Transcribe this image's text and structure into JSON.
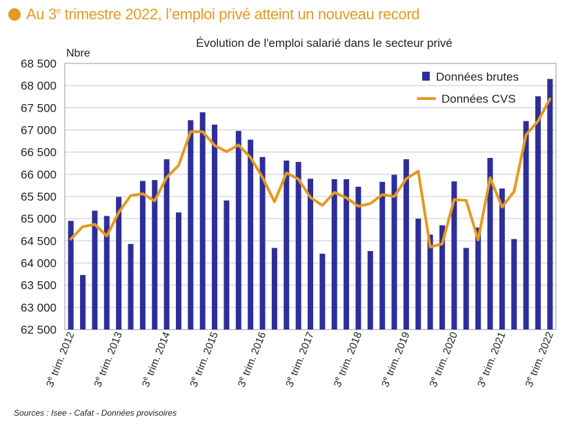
{
  "headline": {
    "pre": "Au 3",
    "sup": "e",
    "post": " trimestre 2022, l’emploi privé atteint un nouveau record",
    "color": "#e39a23"
  },
  "sources": "Sources : Isee - Cafat - Données provisoires",
  "chart_data": {
    "type": "bar",
    "title": "Évolution de l'emploi salarié dans le secteur privé",
    "ylabel": "Nbre",
    "xlabel": "",
    "ylim": [
      62500,
      68500
    ],
    "yticks": [
      62500,
      63000,
      63500,
      64000,
      64500,
      65000,
      65500,
      66000,
      66500,
      67000,
      67500,
      68000,
      68500
    ],
    "ytick_labels": [
      "62 500",
      "63 000",
      "63 500",
      "64 000",
      "64 500",
      "65 000",
      "65 500",
      "66 000",
      "66 500",
      "67 000",
      "67 500",
      "68 000",
      "68 500"
    ],
    "xtick_labels": [
      {
        "index": 0,
        "pre": "3",
        "sup": "e",
        "post": " trim. 2012"
      },
      {
        "index": 4,
        "pre": "3",
        "sup": "e",
        "post": " trim. 2013"
      },
      {
        "index": 8,
        "pre": "3",
        "sup": "e",
        "post": " trim. 2014"
      },
      {
        "index": 12,
        "pre": "3",
        "sup": "e",
        "post": " trim. 2015"
      },
      {
        "index": 16,
        "pre": "3",
        "sup": "e",
        "post": " trim. 2016"
      },
      {
        "index": 20,
        "pre": "3",
        "sup": "e",
        "post": " trim. 2017"
      },
      {
        "index": 24,
        "pre": "3",
        "sup": "e",
        "post": " trim. 2018"
      },
      {
        "index": 28,
        "pre": "3",
        "sup": "e",
        "post": " trim. 2019"
      },
      {
        "index": 32,
        "pre": "3",
        "sup": "e",
        "post": " trim. 2020"
      },
      {
        "index": 36,
        "pre": "3",
        "sup": "e",
        "post": " trim. 2021"
      },
      {
        "index": 40,
        "pre": "3",
        "sup": "e",
        "post": " trim. 2022"
      }
    ],
    "grid": true,
    "legend": "top-right",
    "series": [
      {
        "name": "Données brutes",
        "type": "bar",
        "color": "#2e2e9a",
        "values": [
          64950,
          63730,
          65180,
          65060,
          65490,
          64430,
          65850,
          65870,
          66340,
          65140,
          67220,
          67400,
          67120,
          65410,
          66980,
          66780,
          66390,
          64340,
          66310,
          66280,
          65900,
          64210,
          65890,
          65890,
          65720,
          64270,
          65830,
          65990,
          66340,
          65000,
          64640,
          64850,
          65840,
          64340,
          64800,
          66370,
          65680,
          64540,
          67200,
          67760,
          68150
        ]
      },
      {
        "name": "Données CVS",
        "type": "line",
        "color": "#e39a23",
        "values": [
          64540,
          64820,
          64870,
          64610,
          65140,
          65520,
          65560,
          65400,
          65930,
          66200,
          66960,
          66960,
          66650,
          66510,
          66660,
          66380,
          65930,
          65380,
          66030,
          65890,
          65480,
          65300,
          65590,
          65470,
          65280,
          65340,
          65540,
          65500,
          65900,
          66070,
          64360,
          64430,
          65430,
          65410,
          64520,
          65920,
          65260,
          65610,
          66890,
          67200,
          67700
        ]
      }
    ]
  }
}
